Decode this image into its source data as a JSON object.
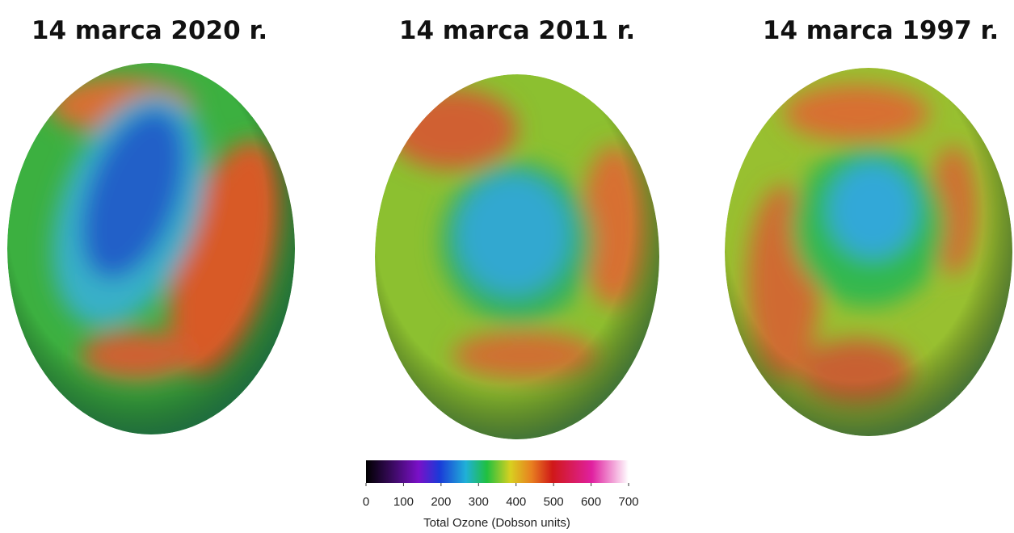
{
  "panels": [
    {
      "title": "14 marca 2020 r."
    },
    {
      "title": "14 marca 2011 r."
    },
    {
      "title": "14 marca 1997 r."
    }
  ],
  "colorbar": {
    "label": "Total Ozone (Dobson units)",
    "lim": [
      0,
      700
    ],
    "ticks": [
      0,
      100,
      200,
      300,
      400,
      500,
      600,
      700
    ]
  }
}
